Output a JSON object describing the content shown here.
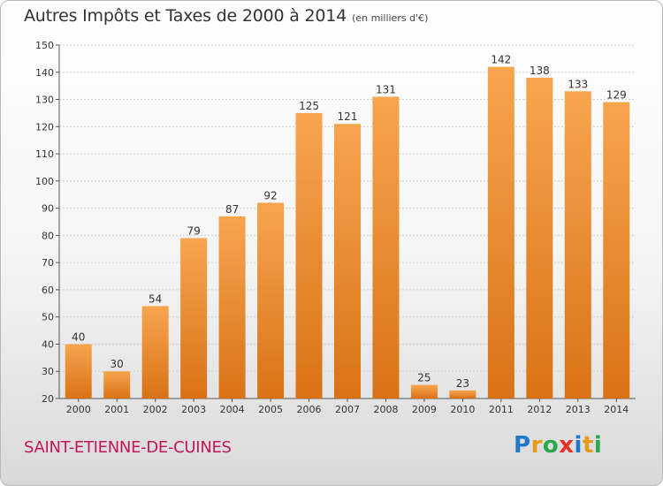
{
  "chart_data": {
    "type": "bar",
    "title": "Autres Impôts et Taxes de 2000 à 2014",
    "unit_label": "(en milliers d'€)",
    "categories": [
      "2000",
      "2001",
      "2002",
      "2003",
      "2004",
      "2005",
      "2006",
      "2007",
      "2008",
      "2009",
      "2010",
      "2011",
      "2012",
      "2013",
      "2014"
    ],
    "values": [
      40,
      30,
      54,
      79,
      87,
      92,
      125,
      121,
      131,
      25,
      23,
      142,
      138,
      133,
      129
    ],
    "ylim": [
      20,
      150
    ],
    "yticks": [
      20,
      30,
      40,
      50,
      60,
      70,
      80,
      90,
      100,
      110,
      120,
      130,
      140,
      150
    ],
    "grid": true,
    "bar_color_top": "#f7a54f",
    "bar_color_bottom": "#d97216"
  },
  "footer": {
    "commune": "SAINT-ETIENNE-DE-CUINES",
    "logo_letters": [
      "P",
      "r",
      "o",
      "x",
      "i",
      "t",
      "i"
    ]
  }
}
